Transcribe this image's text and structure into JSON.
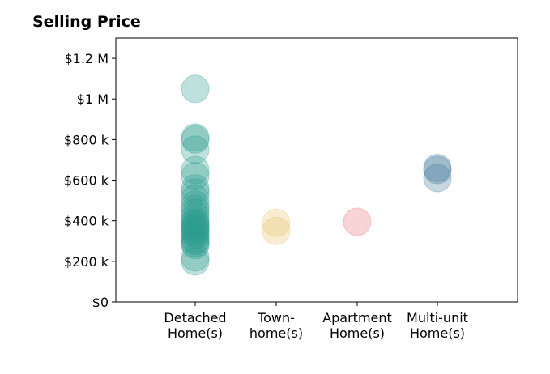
{
  "chart_data": {
    "type": "scatter",
    "title": "Selling Price",
    "xlabel": "",
    "ylabel": "",
    "categories": [
      [
        "Detached",
        "Home(s)"
      ],
      [
        "Town-",
        "home(s)"
      ],
      [
        "Apartment",
        "Home(s)"
      ],
      [
        "Multi-unit",
        "Home(s)"
      ]
    ],
    "ylim": [
      0,
      1300000
    ],
    "y_ticks": [
      {
        "value": 0,
        "label": "$0"
      },
      {
        "value": 200000,
        "label": "$200 k"
      },
      {
        "value": 400000,
        "label": "$400 k"
      },
      {
        "value": 600000,
        "label": "$600 k"
      },
      {
        "value": 800000,
        "label": "$800 k"
      },
      {
        "value": 1000000,
        "label": "$1 M"
      },
      {
        "value": 1200000,
        "label": "$1.2 M"
      }
    ],
    "grid": false,
    "series": [
      {
        "category_index": 0,
        "color": "#2a9d8f",
        "values": [
          1050000,
          810000,
          800000,
          750000,
          650000,
          620000,
          560000,
          540000,
          510000,
          480000,
          460000,
          440000,
          420000,
          400000,
          390000,
          380000,
          370000,
          360000,
          350000,
          340000,
          330000,
          310000,
          300000,
          290000,
          280000,
          220000,
          200000
        ]
      },
      {
        "category_index": 1,
        "color": "#e9c46a",
        "values": [
          390000,
          350000
        ]
      },
      {
        "category_index": 2,
        "color": "#e76f7a",
        "values": [
          395000
        ]
      },
      {
        "category_index": 3,
        "color": "#457b9d",
        "values": [
          660000,
          650000,
          610000
        ]
      }
    ]
  }
}
